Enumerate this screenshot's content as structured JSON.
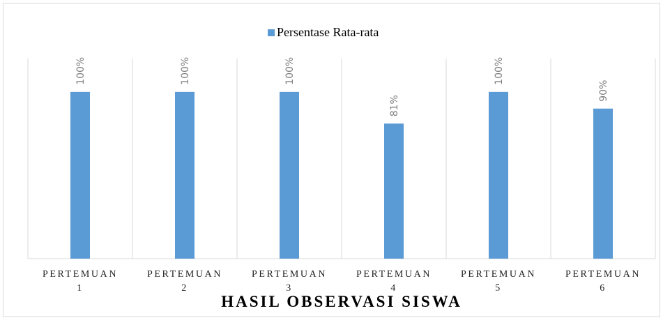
{
  "chart_data": {
    "type": "bar",
    "title": "HASIL OBSERVASI SISWA",
    "categories": [
      "PERTEMUAN 1",
      "PERTEMUAN 2",
      "PERTEMUAN 3",
      "PERTEMUAN 4",
      "PERTEMUAN 5",
      "PERTEMUAN 6"
    ],
    "series": [
      {
        "name": "Persentase Rata-rata",
        "color": "#5b9bd5",
        "values": [
          100,
          100,
          100,
          81,
          100,
          90
        ],
        "value_labels": [
          "100%",
          "100%",
          "100%",
          "81%",
          "100%",
          "90%"
        ]
      }
    ],
    "ylim": [
      0,
      120
    ],
    "grid": true
  }
}
